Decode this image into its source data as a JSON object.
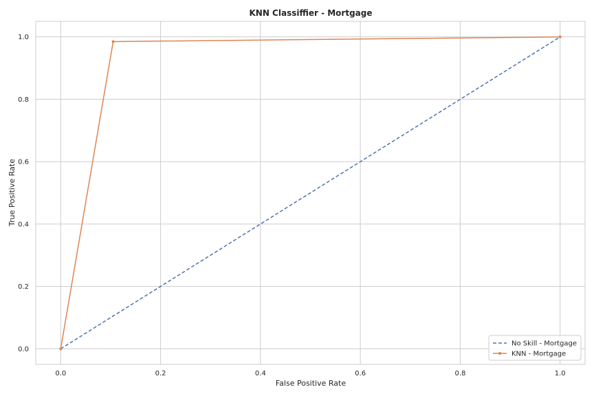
{
  "chart_data": {
    "type": "line",
    "title": "KNN Classiffier - Mortgage",
    "xlabel": "False Positive Rate",
    "ylabel": "True Positive Rate",
    "xlim": [
      -0.05,
      1.05
    ],
    "ylim": [
      -0.05,
      1.05
    ],
    "xticks": [
      "0.0",
      "0.2",
      "0.4",
      "0.6",
      "0.8",
      "1.0"
    ],
    "yticks": [
      "0.0",
      "0.2",
      "0.4",
      "0.6",
      "0.8",
      "1.0"
    ],
    "grid": true,
    "legend_position": "lower-right",
    "series": [
      {
        "name": "No Skill - Mortgage",
        "color": "#4c72b0",
        "style": "dashed",
        "marker": "none",
        "x": [
          0,
          1
        ],
        "y": [
          0,
          1
        ]
      },
      {
        "name": "KNN - Mortgage",
        "color": "#dd8452",
        "style": "solid",
        "marker": "point",
        "x": [
          0,
          0.105,
          1
        ],
        "y": [
          0,
          0.985,
          1
        ]
      }
    ]
  }
}
